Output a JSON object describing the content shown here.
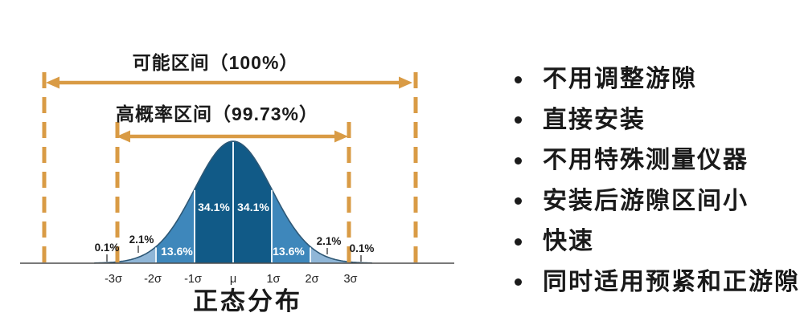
{
  "colors": {
    "accent_orange": "#D99B45",
    "bell_dark": "#115A87",
    "bell_mid": "#3E87BB",
    "bell_light": "#8FB6D7",
    "divider_white": "#E8F2F9",
    "outline_navy": "#2E5876",
    "axis_gray": "#4D4D4D",
    "text_black": "#1A1A1A",
    "pct_text_light": "#FFFFFF"
  },
  "chart_data": {
    "type": "area",
    "subtype": "normal-distribution-density",
    "title": "正态分布",
    "x_tick_labels": [
      "-3σ",
      "-2σ",
      "-1σ",
      "μ",
      "1σ",
      "2σ",
      "3σ"
    ],
    "grid": false,
    "legend": false,
    "segments": [
      {
        "from": "-∞",
        "to": "-3σ",
        "pct": "0.1%",
        "value": 0.1
      },
      {
        "from": "-3σ",
        "to": "-2σ",
        "pct": "2.1%",
        "value": 2.1
      },
      {
        "from": "-2σ",
        "to": "-1σ",
        "pct": "13.6%",
        "value": 13.6
      },
      {
        "from": "-1σ",
        "to": "μ",
        "pct": "34.1%",
        "value": 34.1
      },
      {
        "from": "μ",
        "to": "1σ",
        "pct": "34.1%",
        "value": 34.1
      },
      {
        "from": "1σ",
        "to": "2σ",
        "pct": "13.6%",
        "value": 13.6
      },
      {
        "from": "2σ",
        "to": "3σ",
        "pct": "2.1%",
        "value": 2.1
      },
      {
        "from": "3σ",
        "to": "+∞",
        "pct": "0.1%",
        "value": 0.1
      }
    ],
    "annotations": [
      {
        "label": "可能区间（100%）",
        "coverage_pct": 100,
        "range": "full axis"
      },
      {
        "label": "高概率区间（99.73%）",
        "coverage_pct": 99.73,
        "range": "μ±3σ"
      }
    ]
  },
  "bullets": {
    "items": [
      "不用调整游隙",
      "直接安装",
      "不用特殊测量仪器",
      "安装后游隙区间小",
      "快速",
      "同时适用预紧和正游隙"
    ]
  }
}
